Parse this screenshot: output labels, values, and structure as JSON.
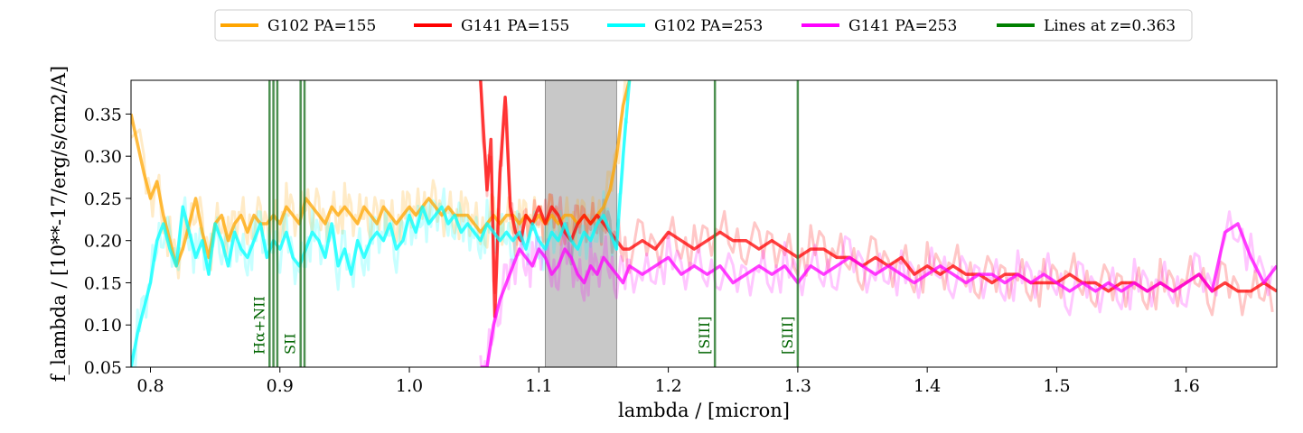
{
  "chart_data": {
    "type": "line",
    "xlabel": "lambda / [micron]",
    "ylabel": "f_lambda / [10**-17/erg/s/cm2/A]",
    "xlim": [
      0.785,
      1.67
    ],
    "ylim": [
      0.05,
      0.39
    ],
    "xticks": [
      0.8,
      0.9,
      1.0,
      1.1,
      1.2,
      1.3,
      1.4,
      1.5,
      1.6
    ],
    "xtick_labels": [
      "0.8",
      "0.9",
      "1.0",
      "1.1",
      "1.2",
      "1.3",
      "1.4",
      "1.5",
      "1.6"
    ],
    "yticks": [
      0.05,
      0.1,
      0.15,
      0.2,
      0.25,
      0.3,
      0.35
    ],
    "ytick_labels": [
      "0.05",
      "0.10",
      "0.15",
      "0.20",
      "0.25",
      "0.30",
      "0.35"
    ],
    "grid": false,
    "legend_position": "top-center",
    "shaded_region": {
      "x0": 1.105,
      "x1": 1.16,
      "color": "#c8c8c8"
    },
    "emission_lines": [
      {
        "label": "Hα+NII",
        "x": [
          0.892,
          0.895,
          0.898
        ]
      },
      {
        "label": "SII",
        "x": [
          0.916,
          0.919
        ]
      },
      {
        "label": "[SIII]",
        "x": [
          1.236
        ]
      },
      {
        "label": "[SIII]",
        "x": [
          1.3
        ]
      }
    ],
    "series": [
      {
        "name": "G102 PA=155",
        "color": "#ffa500",
        "x": [
          0.785,
          0.795,
          0.8,
          0.805,
          0.81,
          0.815,
          0.82,
          0.825,
          0.83,
          0.835,
          0.84,
          0.845,
          0.85,
          0.855,
          0.86,
          0.865,
          0.87,
          0.875,
          0.88,
          0.885,
          0.89,
          0.895,
          0.9,
          0.905,
          0.91,
          0.915,
          0.92,
          0.925,
          0.93,
          0.935,
          0.94,
          0.945,
          0.95,
          0.955,
          0.96,
          0.965,
          0.97,
          0.975,
          0.98,
          0.985,
          0.99,
          0.995,
          1.0,
          1.005,
          1.01,
          1.015,
          1.02,
          1.025,
          1.03,
          1.035,
          1.04,
          1.045,
          1.05,
          1.055,
          1.06,
          1.065,
          1.07,
          1.075,
          1.08,
          1.085,
          1.09,
          1.095,
          1.1,
          1.105,
          1.11,
          1.115,
          1.12,
          1.125,
          1.13,
          1.135,
          1.14,
          1.145,
          1.15,
          1.155,
          1.16,
          1.165,
          1.17
        ],
        "y": [
          0.35,
          0.28,
          0.25,
          0.27,
          0.23,
          0.2,
          0.17,
          0.19,
          0.22,
          0.25,
          0.21,
          0.18,
          0.22,
          0.23,
          0.2,
          0.22,
          0.23,
          0.21,
          0.23,
          0.22,
          0.22,
          0.23,
          0.22,
          0.24,
          0.23,
          0.22,
          0.25,
          0.24,
          0.23,
          0.22,
          0.24,
          0.23,
          0.24,
          0.23,
          0.22,
          0.24,
          0.23,
          0.22,
          0.24,
          0.23,
          0.22,
          0.23,
          0.24,
          0.23,
          0.24,
          0.25,
          0.24,
          0.23,
          0.24,
          0.23,
          0.23,
          0.23,
          0.22,
          0.21,
          0.22,
          0.23,
          0.22,
          0.23,
          0.23,
          0.22,
          0.23,
          0.22,
          0.23,
          0.22,
          0.23,
          0.22,
          0.23,
          0.23,
          0.22,
          0.23,
          0.22,
          0.23,
          0.24,
          0.26,
          0.3,
          0.36,
          0.39
        ]
      },
      {
        "name": "G141 PA=155",
        "color": "#ff0000",
        "x": [
          1.055,
          1.06,
          1.063,
          1.066,
          1.07,
          1.074,
          1.078,
          1.082,
          1.086,
          1.09,
          1.095,
          1.1,
          1.105,
          1.11,
          1.115,
          1.12,
          1.125,
          1.13,
          1.135,
          1.14,
          1.145,
          1.15,
          1.155,
          1.16,
          1.165,
          1.17,
          1.18,
          1.19,
          1.2,
          1.21,
          1.22,
          1.23,
          1.24,
          1.25,
          1.26,
          1.27,
          1.28,
          1.29,
          1.3,
          1.31,
          1.32,
          1.33,
          1.34,
          1.35,
          1.36,
          1.37,
          1.38,
          1.39,
          1.4,
          1.41,
          1.42,
          1.43,
          1.44,
          1.45,
          1.46,
          1.47,
          1.48,
          1.49,
          1.5,
          1.51,
          1.52,
          1.53,
          1.54,
          1.55,
          1.56,
          1.57,
          1.58,
          1.59,
          1.6,
          1.61,
          1.62,
          1.63,
          1.64,
          1.65,
          1.66,
          1.67
        ],
        "y": [
          0.39,
          0.26,
          0.32,
          0.11,
          0.28,
          0.37,
          0.24,
          0.21,
          0.2,
          0.23,
          0.22,
          0.24,
          0.22,
          0.24,
          0.23,
          0.21,
          0.2,
          0.22,
          0.23,
          0.22,
          0.23,
          0.22,
          0.21,
          0.2,
          0.19,
          0.19,
          0.2,
          0.19,
          0.21,
          0.2,
          0.19,
          0.2,
          0.21,
          0.2,
          0.2,
          0.19,
          0.2,
          0.19,
          0.18,
          0.19,
          0.19,
          0.18,
          0.18,
          0.17,
          0.18,
          0.17,
          0.18,
          0.16,
          0.17,
          0.16,
          0.17,
          0.16,
          0.16,
          0.15,
          0.16,
          0.16,
          0.15,
          0.15,
          0.15,
          0.16,
          0.15,
          0.15,
          0.14,
          0.15,
          0.15,
          0.14,
          0.15,
          0.14,
          0.15,
          0.16,
          0.14,
          0.15,
          0.14,
          0.14,
          0.15,
          0.14
        ]
      },
      {
        "name": "G102 PA=253",
        "color": "#00ffff",
        "x": [
          0.785,
          0.79,
          0.795,
          0.8,
          0.805,
          0.81,
          0.815,
          0.82,
          0.825,
          0.83,
          0.835,
          0.84,
          0.845,
          0.85,
          0.855,
          0.86,
          0.865,
          0.87,
          0.875,
          0.88,
          0.885,
          0.89,
          0.895,
          0.9,
          0.905,
          0.91,
          0.915,
          0.92,
          0.925,
          0.93,
          0.935,
          0.94,
          0.945,
          0.95,
          0.955,
          0.96,
          0.965,
          0.97,
          0.975,
          0.98,
          0.985,
          0.99,
          0.995,
          1.0,
          1.005,
          1.01,
          1.015,
          1.02,
          1.025,
          1.03,
          1.035,
          1.04,
          1.045,
          1.05,
          1.055,
          1.06,
          1.065,
          1.07,
          1.075,
          1.08,
          1.085,
          1.09,
          1.095,
          1.1,
          1.105,
          1.11,
          1.115,
          1.12,
          1.125,
          1.13,
          1.135,
          1.14,
          1.145,
          1.15,
          1.155,
          1.16,
          1.165,
          1.17
        ],
        "y": [
          0.05,
          0.09,
          0.12,
          0.15,
          0.2,
          0.22,
          0.19,
          0.17,
          0.24,
          0.21,
          0.18,
          0.2,
          0.16,
          0.22,
          0.2,
          0.17,
          0.21,
          0.19,
          0.18,
          0.2,
          0.22,
          0.18,
          0.2,
          0.19,
          0.21,
          0.18,
          0.17,
          0.19,
          0.21,
          0.2,
          0.18,
          0.22,
          0.17,
          0.19,
          0.16,
          0.2,
          0.18,
          0.2,
          0.21,
          0.2,
          0.22,
          0.19,
          0.2,
          0.23,
          0.21,
          0.24,
          0.22,
          0.23,
          0.24,
          0.22,
          0.23,
          0.21,
          0.22,
          0.21,
          0.2,
          0.22,
          0.21,
          0.2,
          0.21,
          0.2,
          0.21,
          0.19,
          0.22,
          0.2,
          0.19,
          0.21,
          0.2,
          0.22,
          0.2,
          0.19,
          0.21,
          0.2,
          0.22,
          0.23,
          0.21,
          0.19,
          0.3,
          0.39
        ]
      },
      {
        "name": "G141 PA=253",
        "color": "#ff00ff",
        "x": [
          1.055,
          1.06,
          1.065,
          1.07,
          1.075,
          1.08,
          1.085,
          1.09,
          1.095,
          1.1,
          1.105,
          1.11,
          1.115,
          1.12,
          1.125,
          1.13,
          1.135,
          1.14,
          1.145,
          1.15,
          1.155,
          1.16,
          1.165,
          1.17,
          1.18,
          1.19,
          1.2,
          1.21,
          1.22,
          1.23,
          1.24,
          1.25,
          1.26,
          1.27,
          1.28,
          1.29,
          1.3,
          1.31,
          1.32,
          1.33,
          1.34,
          1.35,
          1.36,
          1.37,
          1.38,
          1.39,
          1.4,
          1.41,
          1.42,
          1.43,
          1.44,
          1.45,
          1.46,
          1.47,
          1.48,
          1.49,
          1.5,
          1.51,
          1.52,
          1.53,
          1.54,
          1.55,
          1.56,
          1.57,
          1.58,
          1.59,
          1.6,
          1.61,
          1.62,
          1.63,
          1.64,
          1.65,
          1.66,
          1.67
        ],
        "y": [
          0.05,
          0.05,
          0.1,
          0.13,
          0.15,
          0.17,
          0.19,
          0.18,
          0.17,
          0.19,
          0.18,
          0.16,
          0.17,
          0.19,
          0.18,
          0.16,
          0.15,
          0.17,
          0.16,
          0.18,
          0.17,
          0.16,
          0.15,
          0.17,
          0.16,
          0.17,
          0.18,
          0.16,
          0.17,
          0.16,
          0.17,
          0.15,
          0.16,
          0.17,
          0.16,
          0.17,
          0.15,
          0.17,
          0.16,
          0.17,
          0.18,
          0.17,
          0.16,
          0.17,
          0.16,
          0.15,
          0.16,
          0.17,
          0.16,
          0.15,
          0.16,
          0.16,
          0.15,
          0.16,
          0.15,
          0.16,
          0.15,
          0.14,
          0.15,
          0.14,
          0.15,
          0.14,
          0.15,
          0.14,
          0.15,
          0.14,
          0.15,
          0.16,
          0.14,
          0.21,
          0.22,
          0.18,
          0.15,
          0.17
        ]
      }
    ],
    "legend": [
      {
        "label": "G102 PA=155",
        "color": "#ffa500"
      },
      {
        "label": "G141 PA=155",
        "color": "#ff0000"
      },
      {
        "label": "G102 PA=253",
        "color": "#00ffff"
      },
      {
        "label": "G141 PA=253",
        "color": "#ff00ff"
      },
      {
        "label": "Lines at z=0.363",
        "color": "#008000"
      }
    ]
  }
}
